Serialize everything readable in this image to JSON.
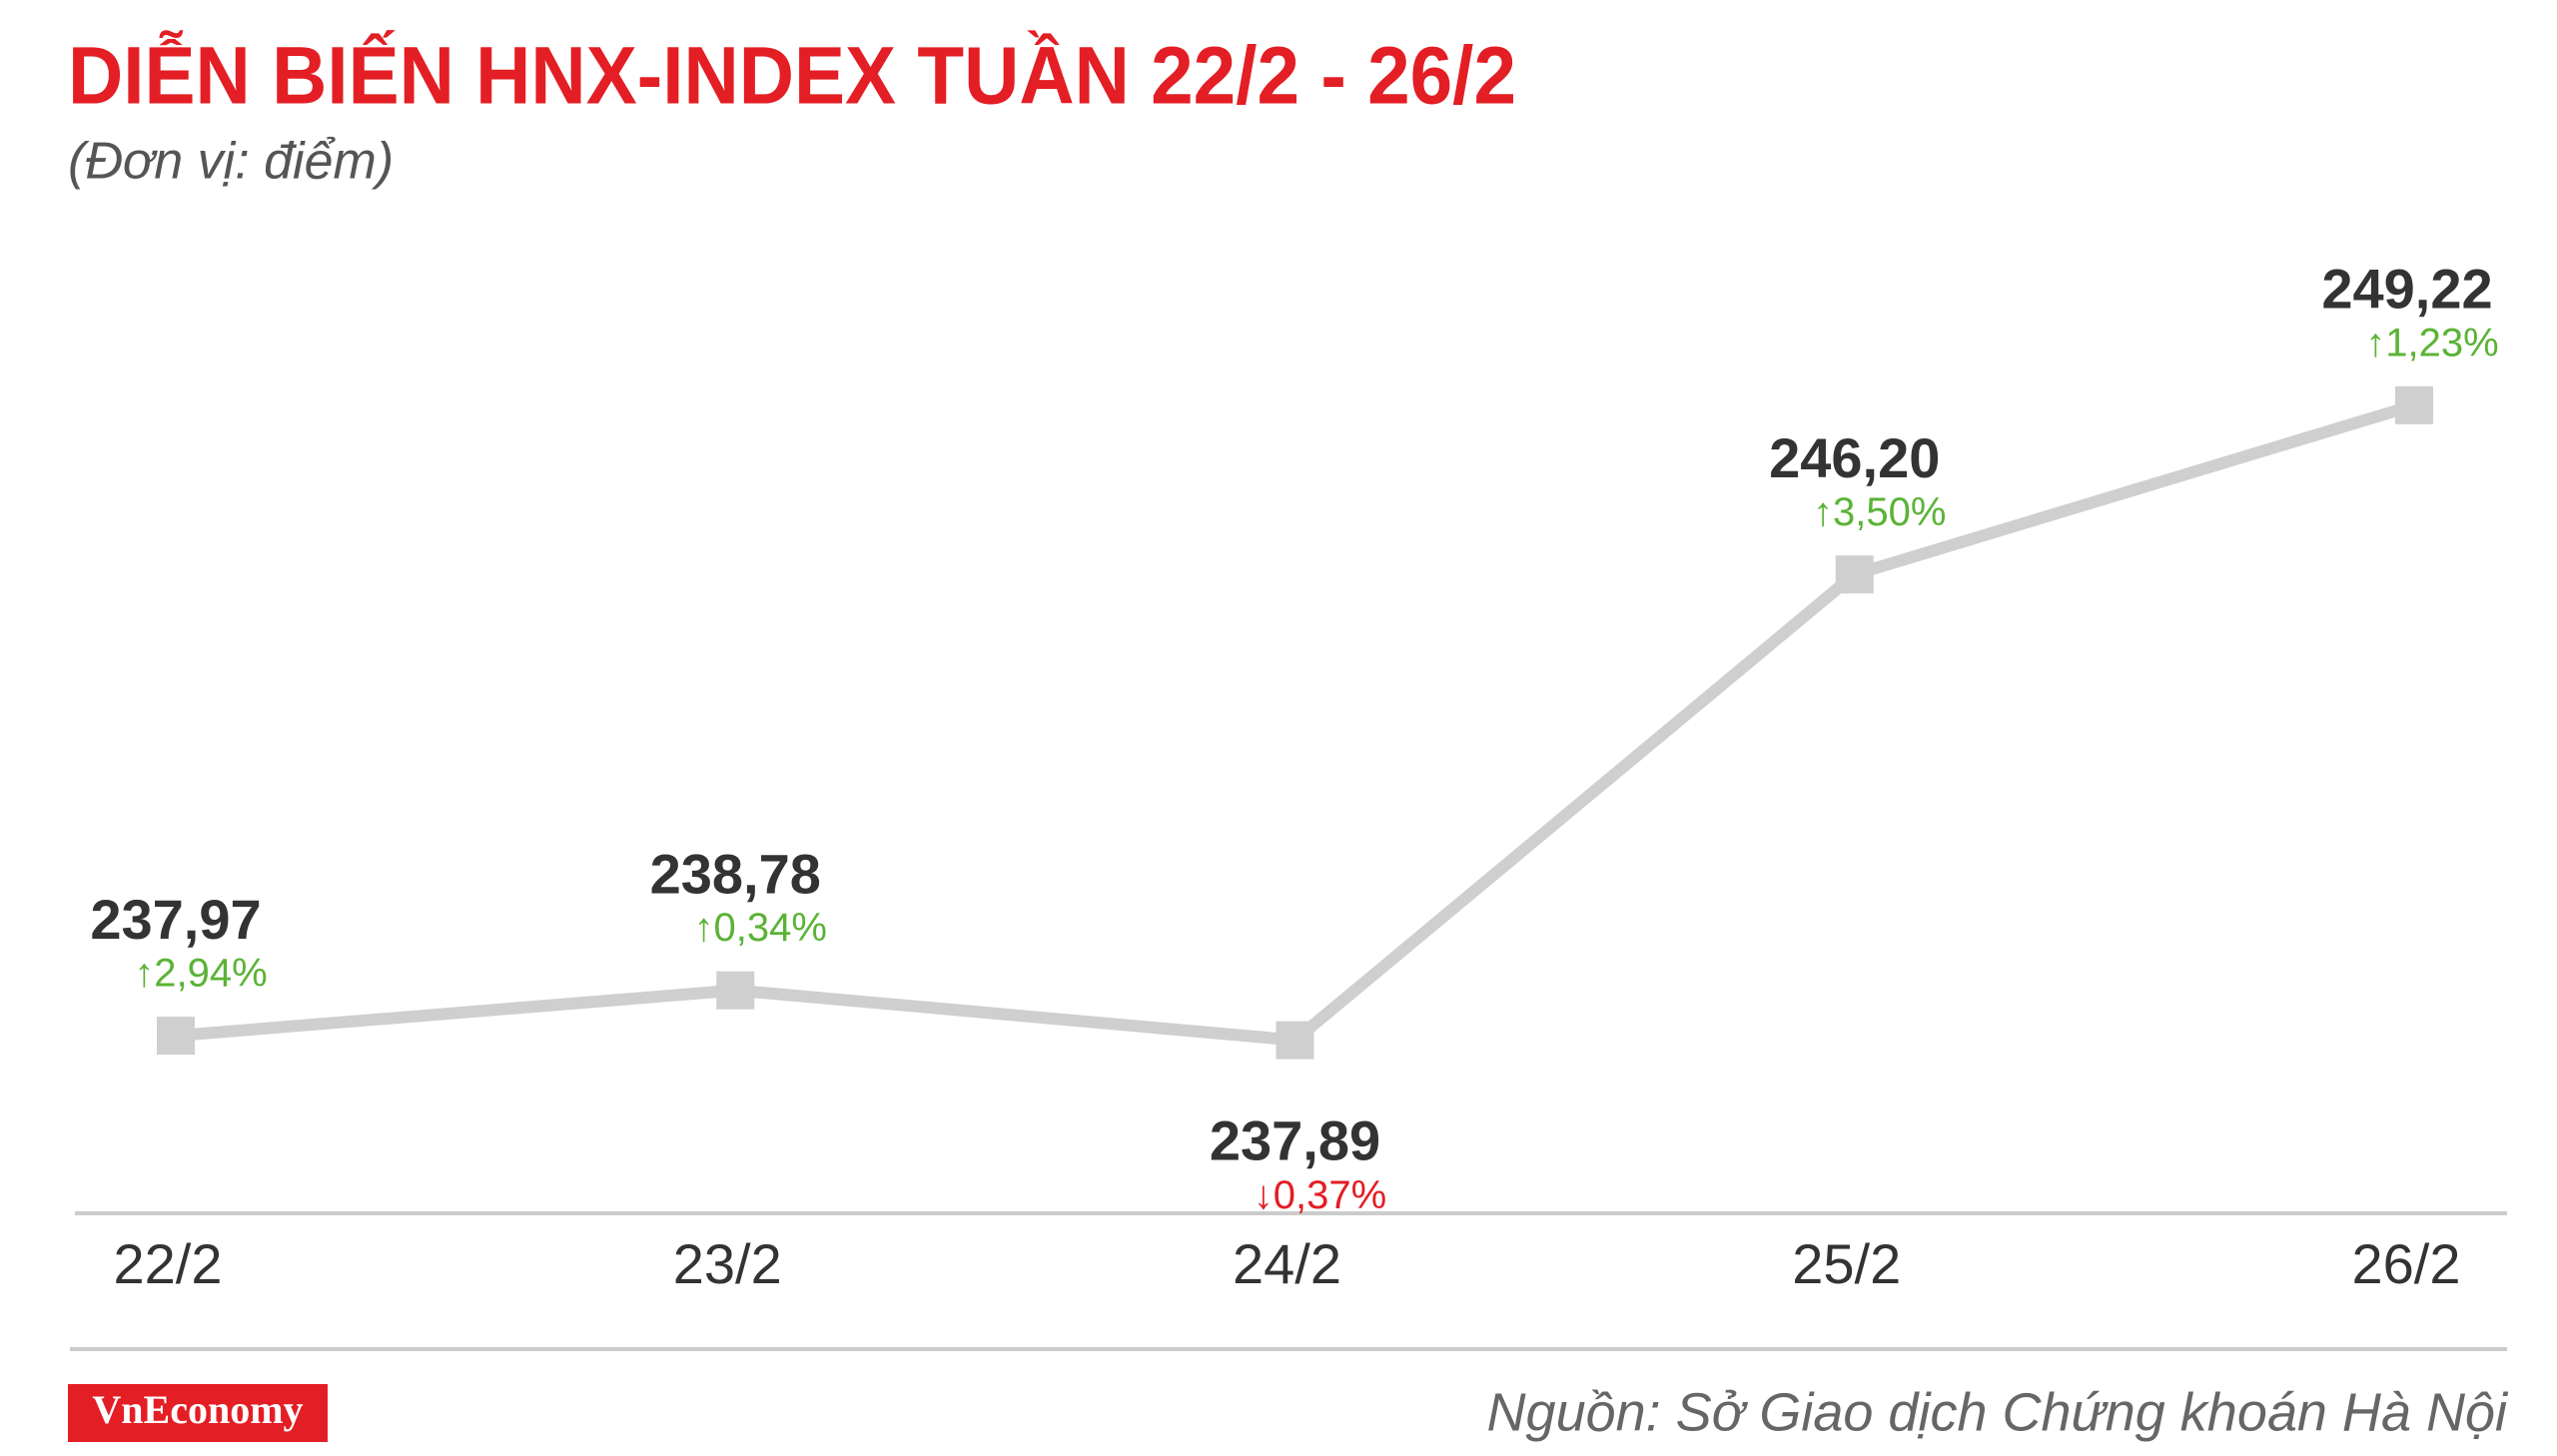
{
  "chart_data": {
    "type": "line",
    "title": "DIỄN BIẾN HNX-INDEX TUẦN 22/2 - 26/2",
    "subtitle": "(Đơn vị: điểm)",
    "categories": [
      "22/2",
      "23/2",
      "24/2",
      "25/2",
      "26/2"
    ],
    "series": [
      {
        "color": "#cfcfcf",
        "values": [
          237.97,
          238.78,
          237.89,
          246.2,
          249.22
        ],
        "value_labels": [
          "237,97",
          "238,78",
          "237,89",
          "246,20",
          "249,22"
        ],
        "change_labels": [
          "↑2,94%",
          "↑0,34%",
          "↓0,37%",
          "↑3,50%",
          "↑1,23%"
        ]
      }
    ],
    "up_color": "#5bb336",
    "down_color": "#e31e24",
    "ylim": [
      234.8,
      250.5
    ],
    "logo": "VnEconomy",
    "source": "Nguồn: Sở Giao dịch Chứng khoán Hà Nội"
  }
}
